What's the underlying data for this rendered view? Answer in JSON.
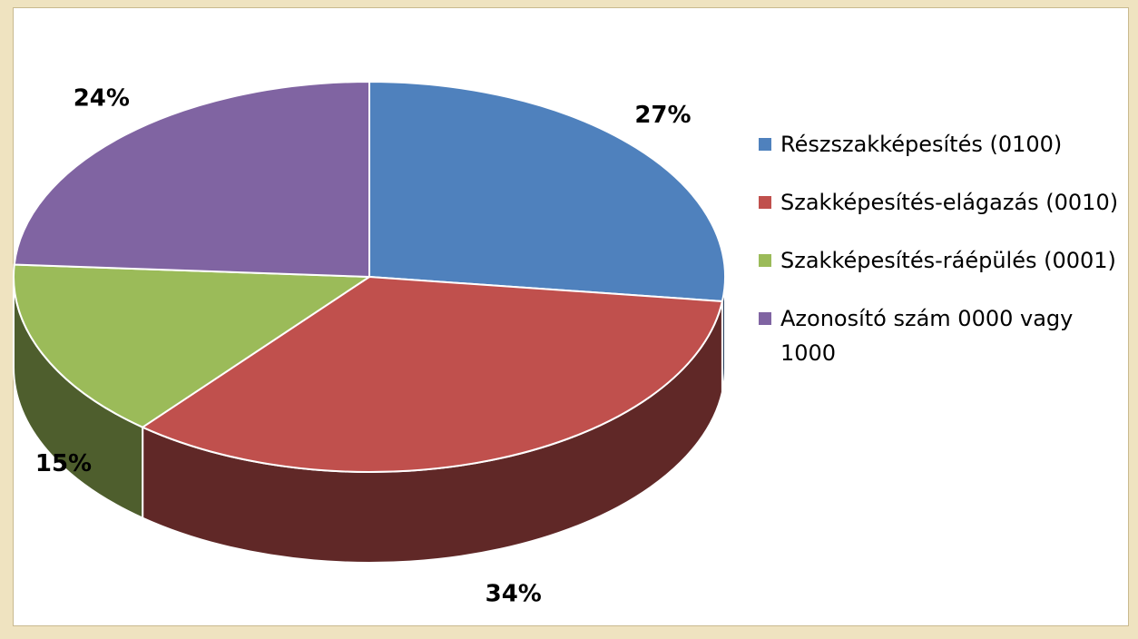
{
  "chart_data": {
    "type": "pie",
    "categories": [
      "Részszakképesítés (0100)",
      "Szakképesítés-elágazás (0010)",
      "Szakképesítés-ráépülés (0001)",
      "Azonosító szám 0000 vagy 1000"
    ],
    "values": [
      27,
      34,
      15,
      24
    ],
    "value_labels": [
      "27%",
      "34%",
      "15%",
      "24%"
    ],
    "colors": [
      "#4f81bd",
      "#c0504d",
      "#9bbb59",
      "#8064a2"
    ],
    "legend": "right"
  }
}
